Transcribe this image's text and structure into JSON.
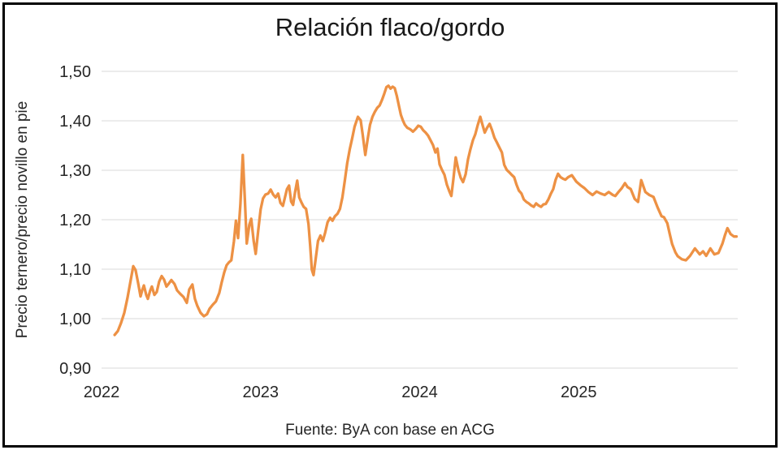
{
  "window": {
    "background": "#ffffff",
    "border_color": "#000000"
  },
  "chart_data": {
    "type": "line",
    "title": "Relación flaco/gordo",
    "ylabel": "Precio ternero/precio novillo en pie",
    "xlabel": "",
    "source_note": "Fuente: ByA con base en ACG",
    "legend": "none",
    "grid": "horizontal",
    "decimal_separator": ",",
    "xlim": [
      2022,
      2026
    ],
    "ylim": [
      0.9,
      1.5
    ],
    "x_ticks": [
      2022,
      2023,
      2024,
      2025
    ],
    "x_tick_labels": [
      "2022",
      "2023",
      "2024",
      "2025"
    ],
    "y_ticks": [
      1.5,
      1.4,
      1.3,
      1.2,
      1.1,
      1.0,
      0.9
    ],
    "y_tick_labels": [
      "1,50",
      "1,40",
      "1,30",
      "1,20",
      "1,10",
      "1,00",
      "0,90"
    ],
    "colors": {
      "line": "#ED9144",
      "grid": "#D8D8D8",
      "tick_text": "#262626",
      "title_text": "#1a1a1a"
    },
    "series": [
      {
        "name": "Relación flaco/gordo",
        "color": "#ED9144",
        "points": [
          [
            2022.082,
            0.967
          ],
          [
            2022.102,
            0.975
          ],
          [
            2022.122,
            0.991
          ],
          [
            2022.143,
            1.012
          ],
          [
            2022.163,
            1.042
          ],
          [
            2022.179,
            1.07
          ],
          [
            2022.199,
            1.106
          ],
          [
            2022.214,
            1.098
          ],
          [
            2022.23,
            1.072
          ],
          [
            2022.245,
            1.045
          ],
          [
            2022.256,
            1.058
          ],
          [
            2022.266,
            1.067
          ],
          [
            2022.281,
            1.048
          ],
          [
            2022.291,
            1.04
          ],
          [
            2022.306,
            1.057
          ],
          [
            2022.316,
            1.065
          ],
          [
            2022.332,
            1.048
          ],
          [
            2022.347,
            1.054
          ],
          [
            2022.362,
            1.075
          ],
          [
            2022.378,
            1.086
          ],
          [
            2022.393,
            1.079
          ],
          [
            2022.408,
            1.065
          ],
          [
            2022.423,
            1.071
          ],
          [
            2022.439,
            1.078
          ],
          [
            2022.459,
            1.07
          ],
          [
            2022.475,
            1.057
          ],
          [
            2022.495,
            1.05
          ],
          [
            2022.515,
            1.044
          ],
          [
            2022.536,
            1.032
          ],
          [
            2022.551,
            1.059
          ],
          [
            2022.571,
            1.069
          ],
          [
            2022.587,
            1.04
          ],
          [
            2022.602,
            1.026
          ],
          [
            2022.622,
            1.012
          ],
          [
            2022.643,
            1.005
          ],
          [
            2022.663,
            1.009
          ],
          [
            2022.679,
            1.02
          ],
          [
            2022.699,
            1.028
          ],
          [
            2022.719,
            1.035
          ],
          [
            2022.74,
            1.052
          ],
          [
            2022.755,
            1.073
          ],
          [
            2022.771,
            1.093
          ],
          [
            2022.786,
            1.108
          ],
          [
            2022.801,
            1.114
          ],
          [
            2022.816,
            1.118
          ],
          [
            2022.832,
            1.156
          ],
          [
            2022.845,
            1.198
          ],
          [
            2022.858,
            1.163
          ],
          [
            2022.873,
            1.232
          ],
          [
            2022.888,
            1.331
          ],
          [
            2022.901,
            1.24
          ],
          [
            2022.913,
            1.152
          ],
          [
            2022.929,
            1.19
          ],
          [
            2022.941,
            1.202
          ],
          [
            2022.957,
            1.156
          ],
          [
            2022.969,
            1.131
          ],
          [
            2022.985,
            1.178
          ],
          [
            2023.0,
            1.221
          ],
          [
            2023.015,
            1.243
          ],
          [
            2023.031,
            1.251
          ],
          [
            2023.048,
            1.253
          ],
          [
            2023.063,
            1.261
          ],
          [
            2023.079,
            1.251
          ],
          [
            2023.094,
            1.245
          ],
          [
            2023.11,
            1.253
          ],
          [
            2023.125,
            1.234
          ],
          [
            2023.14,
            1.228
          ],
          [
            2023.153,
            1.245
          ],
          [
            2023.166,
            1.262
          ],
          [
            2023.179,
            1.269
          ],
          [
            2023.192,
            1.237
          ],
          [
            2023.204,
            1.23
          ],
          [
            2023.217,
            1.256
          ],
          [
            2023.23,
            1.279
          ],
          [
            2023.243,
            1.245
          ],
          [
            2023.258,
            1.234
          ],
          [
            2023.271,
            1.226
          ],
          [
            2023.286,
            1.222
          ],
          [
            2023.301,
            1.191
          ],
          [
            2023.312,
            1.147
          ],
          [
            2023.322,
            1.099
          ],
          [
            2023.333,
            1.088
          ],
          [
            2023.345,
            1.118
          ],
          [
            2023.361,
            1.157
          ],
          [
            2023.376,
            1.168
          ],
          [
            2023.391,
            1.157
          ],
          [
            2023.406,
            1.174
          ],
          [
            2023.421,
            1.195
          ],
          [
            2023.437,
            1.204
          ],
          [
            2023.452,
            1.198
          ],
          [
            2023.467,
            1.207
          ],
          [
            2023.483,
            1.212
          ],
          [
            2023.499,
            1.222
          ],
          [
            2023.514,
            1.245
          ],
          [
            2023.529,
            1.278
          ],
          [
            2023.545,
            1.315
          ],
          [
            2023.56,
            1.342
          ],
          [
            2023.576,
            1.365
          ],
          [
            2023.591,
            1.388
          ],
          [
            2023.612,
            1.408
          ],
          [
            2023.629,
            1.401
          ],
          [
            2023.642,
            1.372
          ],
          [
            2023.658,
            1.331
          ],
          [
            2023.673,
            1.363
          ],
          [
            2023.688,
            1.392
          ],
          [
            2023.703,
            1.408
          ],
          [
            2023.718,
            1.418
          ],
          [
            2023.733,
            1.426
          ],
          [
            2023.748,
            1.431
          ],
          [
            2023.763,
            1.442
          ],
          [
            2023.778,
            1.455
          ],
          [
            2023.791,
            1.468
          ],
          [
            2023.804,
            1.471
          ],
          [
            2023.817,
            1.465
          ],
          [
            2023.83,
            1.469
          ],
          [
            2023.843,
            1.466
          ],
          [
            2023.856,
            1.451
          ],
          [
            2023.869,
            1.431
          ],
          [
            2023.882,
            1.412
          ],
          [
            2023.894,
            1.401
          ],
          [
            2023.907,
            1.392
          ],
          [
            2023.922,
            1.386
          ],
          [
            2023.94,
            1.383
          ],
          [
            2023.958,
            1.378
          ],
          [
            2023.976,
            1.384
          ],
          [
            2023.991,
            1.39
          ],
          [
            2024.007,
            1.388
          ],
          [
            2024.022,
            1.381
          ],
          [
            2024.038,
            1.376
          ],
          [
            2024.053,
            1.37
          ],
          [
            2024.068,
            1.361
          ],
          [
            2024.084,
            1.351
          ],
          [
            2024.099,
            1.336
          ],
          [
            2024.112,
            1.344
          ],
          [
            2024.125,
            1.312
          ],
          [
            2024.14,
            1.301
          ],
          [
            2024.156,
            1.291
          ],
          [
            2024.171,
            1.271
          ],
          [
            2024.186,
            1.258
          ],
          [
            2024.199,
            1.248
          ],
          [
            2024.212,
            1.282
          ],
          [
            2024.227,
            1.326
          ],
          [
            2024.243,
            1.301
          ],
          [
            2024.258,
            1.285
          ],
          [
            2024.273,
            1.276
          ],
          [
            2024.289,
            1.292
          ],
          [
            2024.304,
            1.322
          ],
          [
            2024.319,
            1.342
          ],
          [
            2024.335,
            1.361
          ],
          [
            2024.35,
            1.373
          ],
          [
            2024.365,
            1.391
          ],
          [
            2024.381,
            1.408
          ],
          [
            2024.396,
            1.391
          ],
          [
            2024.409,
            1.376
          ],
          [
            2024.424,
            1.386
          ],
          [
            2024.44,
            1.394
          ],
          [
            2024.455,
            1.381
          ],
          [
            2024.47,
            1.366
          ],
          [
            2024.486,
            1.356
          ],
          [
            2024.501,
            1.346
          ],
          [
            2024.517,
            1.336
          ],
          [
            2024.532,
            1.311
          ],
          [
            2024.547,
            1.301
          ],
          [
            2024.563,
            1.296
          ],
          [
            2024.578,
            1.291
          ],
          [
            2024.594,
            1.286
          ],
          [
            2024.609,
            1.271
          ],
          [
            2024.624,
            1.259
          ],
          [
            2024.64,
            1.253
          ],
          [
            2024.655,
            1.241
          ],
          [
            2024.671,
            1.236
          ],
          [
            2024.686,
            1.233
          ],
          [
            2024.701,
            1.229
          ],
          [
            2024.717,
            1.226
          ],
          [
            2024.732,
            1.233
          ],
          [
            2024.747,
            1.229
          ],
          [
            2024.763,
            1.226
          ],
          [
            2024.778,
            1.231
          ],
          [
            2024.793,
            1.232
          ],
          [
            2024.809,
            1.241
          ],
          [
            2024.824,
            1.252
          ],
          [
            2024.84,
            1.262
          ],
          [
            2024.855,
            1.281
          ],
          [
            2024.87,
            1.293
          ],
          [
            2024.886,
            1.286
          ],
          [
            2024.901,
            1.283
          ],
          [
            2024.916,
            1.281
          ],
          [
            2024.934,
            1.286
          ],
          [
            2024.957,
            1.29
          ],
          [
            2024.985,
            1.277
          ],
          [
            2025.01,
            1.27
          ],
          [
            2025.036,
            1.264
          ],
          [
            2025.061,
            1.256
          ],
          [
            2025.087,
            1.25
          ],
          [
            2025.112,
            1.257
          ],
          [
            2025.138,
            1.253
          ],
          [
            2025.163,
            1.25
          ],
          [
            2025.189,
            1.256
          ],
          [
            2025.215,
            1.25
          ],
          [
            2025.23,
            1.248
          ],
          [
            2025.25,
            1.256
          ],
          [
            2025.271,
            1.264
          ],
          [
            2025.291,
            1.274
          ],
          [
            2025.307,
            1.266
          ],
          [
            2025.327,
            1.262
          ],
          [
            2025.352,
            1.242
          ],
          [
            2025.373,
            1.236
          ],
          [
            2025.393,
            1.28
          ],
          [
            2025.419,
            1.256
          ],
          [
            2025.444,
            1.25
          ],
          [
            2025.47,
            1.246
          ],
          [
            2025.496,
            1.225
          ],
          [
            2025.521,
            1.207
          ],
          [
            2025.536,
            1.205
          ],
          [
            2025.557,
            1.193
          ],
          [
            2025.572,
            1.172
          ],
          [
            2025.587,
            1.151
          ],
          [
            2025.608,
            1.134
          ],
          [
            2025.623,
            1.126
          ],
          [
            2025.649,
            1.12
          ],
          [
            2025.674,
            1.118
          ],
          [
            2025.7,
            1.127
          ],
          [
            2025.731,
            1.142
          ],
          [
            2025.761,
            1.13
          ],
          [
            2025.782,
            1.136
          ],
          [
            2025.802,
            1.127
          ],
          [
            2025.828,
            1.142
          ],
          [
            2025.853,
            1.13
          ],
          [
            2025.879,
            1.133
          ],
          [
            2025.904,
            1.152
          ],
          [
            2025.92,
            1.169
          ],
          [
            2025.935,
            1.183
          ],
          [
            2025.955,
            1.171
          ],
          [
            2025.976,
            1.166
          ],
          [
            2025.992,
            1.166
          ]
        ]
      }
    ]
  }
}
